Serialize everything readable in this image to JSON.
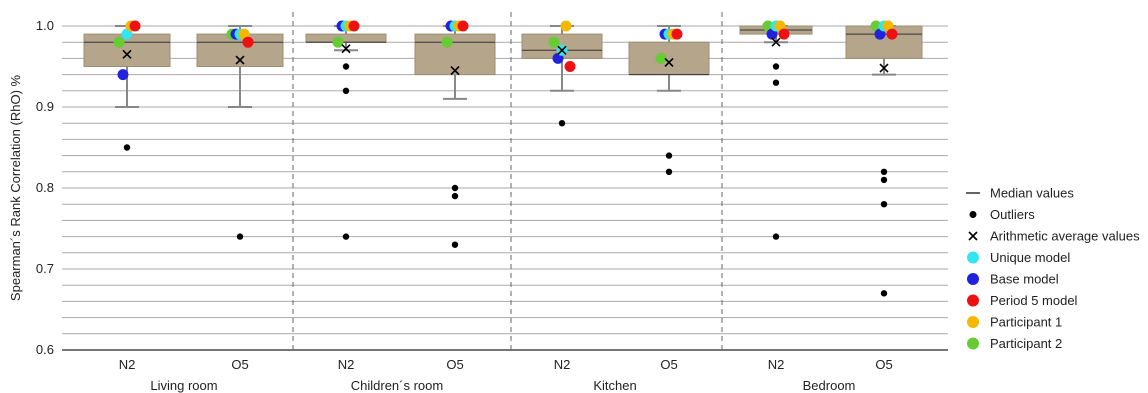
{
  "chart_data": {
    "type": "box",
    "ylabel": "Spearman´s Rank Correlation (RhO) %",
    "ylim": [
      0.6,
      1.0
    ],
    "yticks": [
      "0.6",
      "0.7",
      "0.8",
      "0.9",
      "1.0"
    ],
    "ytick_values": [
      0.6,
      0.7,
      0.8,
      0.9,
      1.0
    ],
    "grid": "horizontal minor every 0.02",
    "groups": [
      "Living room",
      "Children´s room",
      "Kitchen",
      "Bedroom"
    ],
    "boxes": [
      {
        "group": "Living room",
        "label": "N2",
        "q1": 0.95,
        "median": 0.98,
        "q3": 0.99,
        "whisker_low": 0.9,
        "whisker_high": 1.0,
        "mean": 0.965,
        "outliers": [
          0.85
        ],
        "points": {
          "unique": 0.99,
          "base": 0.94,
          "period5": 1.0,
          "p1": 1.0,
          "p2": 0.98
        }
      },
      {
        "group": "Living room",
        "label": "O5",
        "q1": 0.95,
        "median": 0.98,
        "q3": 0.99,
        "whisker_low": 0.9,
        "whisker_high": 1.0,
        "mean": 0.958,
        "outliers": [
          0.74
        ],
        "points": {
          "unique": 0.99,
          "base": 0.99,
          "period5": 0.98,
          "p1": 0.99,
          "p2": 0.99
        }
      },
      {
        "group": "Children´s room",
        "label": "N2",
        "q1": 0.98,
        "median": 0.98,
        "q3": 0.99,
        "whisker_low": 0.97,
        "whisker_high": 1.0,
        "mean": 0.972,
        "outliers": [
          0.95,
          0.92,
          0.74
        ],
        "points": {
          "unique": 1.0,
          "base": 1.0,
          "period5": 1.0,
          "p1": 1.0,
          "p2": 0.98
        }
      },
      {
        "group": "Children´s room",
        "label": "O5",
        "q1": 0.94,
        "median": 0.98,
        "q3": 0.99,
        "whisker_low": 0.91,
        "whisker_high": 1.0,
        "mean": 0.945,
        "outliers": [
          0.8,
          0.79,
          0.73
        ],
        "points": {
          "unique": 1.0,
          "base": 1.0,
          "period5": 1.0,
          "p1": 1.0,
          "p2": 0.98
        }
      },
      {
        "group": "Kitchen",
        "label": "N2",
        "q1": 0.96,
        "median": 0.97,
        "q3": 0.99,
        "whisker_low": 0.92,
        "whisker_high": 1.0,
        "mean": 0.97,
        "outliers": [
          0.88
        ],
        "points": {
          "unique": 0.97,
          "base": 0.96,
          "period5": 0.95,
          "p1": 1.0,
          "p2": 0.98
        }
      },
      {
        "group": "Kitchen",
        "label": "O5",
        "q1": 0.94,
        "median": 0.94,
        "q3": 0.98,
        "whisker_low": 0.92,
        "whisker_high": 1.0,
        "mean": 0.955,
        "outliers": [
          0.84,
          0.82
        ],
        "points": {
          "unique": 0.99,
          "base": 0.99,
          "period5": 0.99,
          "p1": 0.99,
          "p2": 0.96
        }
      },
      {
        "group": "Bedroom",
        "label": "N2",
        "q1": 0.99,
        "median": 0.995,
        "q3": 1.0,
        "whisker_low": 0.98,
        "whisker_high": 1.0,
        "mean": 0.98,
        "outliers": [
          0.95,
          0.93,
          0.74
        ],
        "points": {
          "unique": 1.0,
          "base": 0.99,
          "period5": 0.99,
          "p1": 1.0,
          "p2": 1.0
        }
      },
      {
        "group": "Bedroom",
        "label": "O5",
        "q1": 0.96,
        "median": 0.99,
        "q3": 1.0,
        "whisker_low": 0.94,
        "whisker_high": 1.0,
        "mean": 0.948,
        "outliers": [
          0.82,
          0.81,
          0.78,
          0.67
        ],
        "points": {
          "unique": 1.0,
          "base": 0.99,
          "period5": 0.99,
          "p1": 1.0,
          "p2": 1.0
        }
      }
    ],
    "legend": {
      "position": "right",
      "items": [
        {
          "key": "median",
          "label": "Median values",
          "symbol": "line"
        },
        {
          "key": "outlier",
          "label": "Outliers",
          "symbol": "dot",
          "color": "#000000"
        },
        {
          "key": "mean",
          "label": "Arithmetic average values",
          "symbol": "x"
        },
        {
          "key": "unique",
          "label": "Unique model",
          "symbol": "circle",
          "color": "#33e6ee"
        },
        {
          "key": "base",
          "label": "Base model",
          "symbol": "circle",
          "color": "#2222dd"
        },
        {
          "key": "period5",
          "label": "Period 5 model",
          "symbol": "circle",
          "color": "#ee1111"
        },
        {
          "key": "p1",
          "label": "Participant 1",
          "symbol": "circle",
          "color": "#f5b800"
        },
        {
          "key": "p2",
          "label": "Participant 2",
          "symbol": "circle",
          "color": "#66cc33"
        }
      ]
    },
    "colors": {
      "box": "#b5a58a",
      "whisker": "#888888",
      "grid": "#aaaaaa",
      "separator": "#666666"
    }
  }
}
